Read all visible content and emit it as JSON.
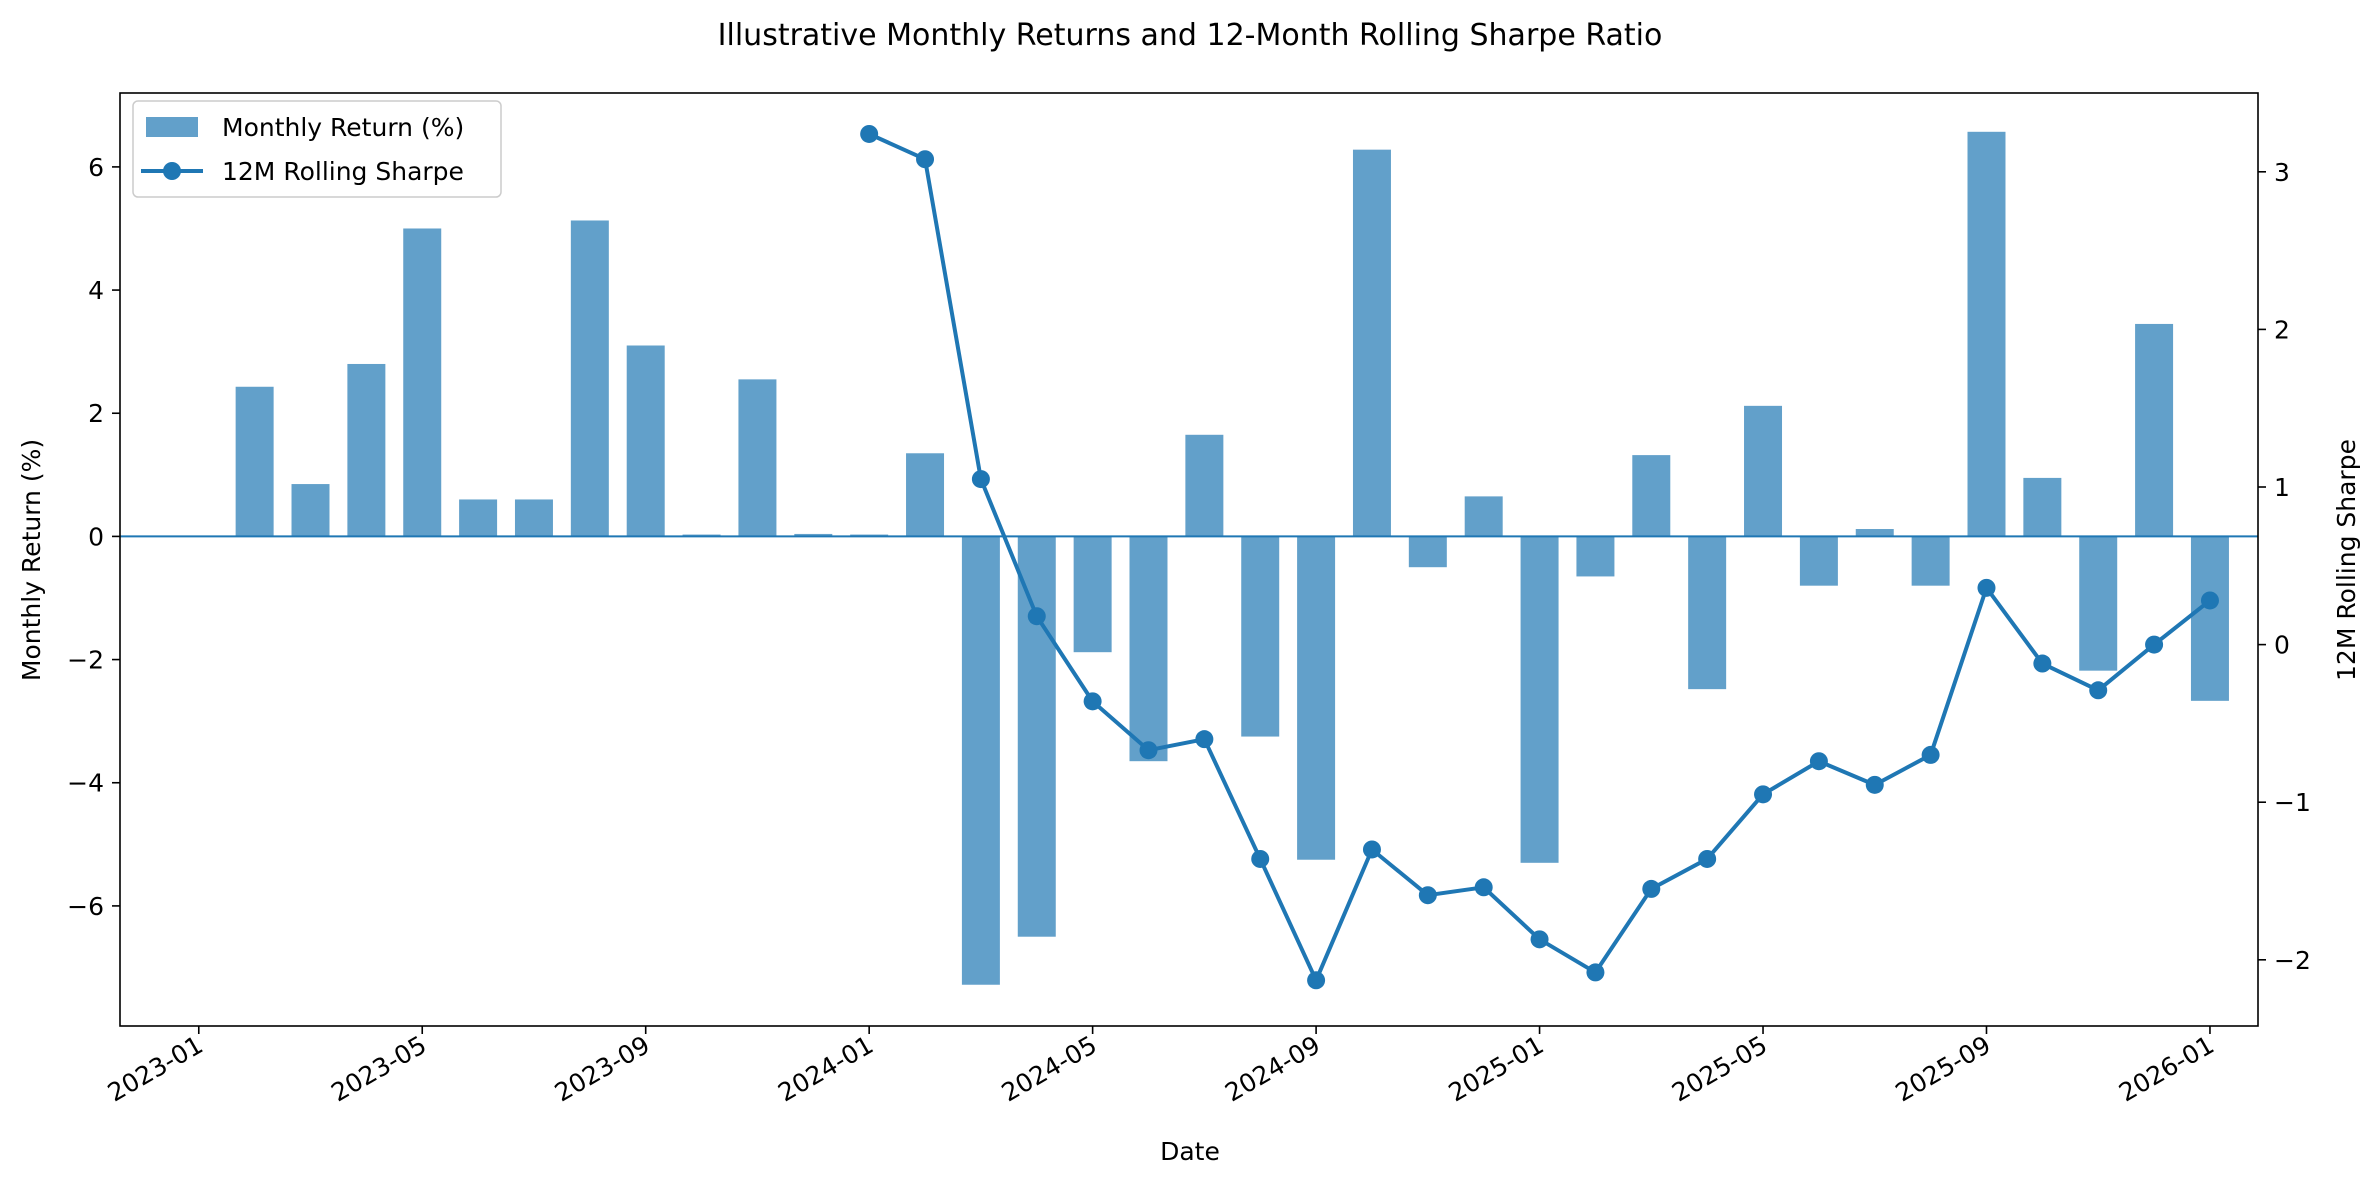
{
  "chart_data": {
    "type": "bar",
    "title": "Illustrative Monthly Returns and 12-Month Rolling Sharpe Ratio",
    "xlabel": "Date",
    "ylabel_left": "Monthly Return (%)",
    "ylabel_right": "12M Rolling Sharpe",
    "x_tick_labels": [
      "2023-01",
      "2023-05",
      "2023-09",
      "2024-01",
      "2024-05",
      "2024-09",
      "2025-01",
      "2025-05",
      "2025-09",
      "2026-01"
    ],
    "ylim_left": [
      -7.95,
      7.2
    ],
    "ylim_right": [
      -2.42,
      3.5
    ],
    "yticks_left": [
      -6,
      -4,
      -2,
      0,
      2,
      4,
      6
    ],
    "yticks_right": [
      -2,
      -1,
      0,
      1,
      2,
      3
    ],
    "legend_position": "upper left",
    "zero_line": true,
    "colors": {
      "bar": "#1f77b4",
      "bar_opacity": 0.7,
      "line": "#1f77b4"
    },
    "categories": [
      "2023-02",
      "2023-03",
      "2023-04",
      "2023-05",
      "2023-06",
      "2023-07",
      "2023-08",
      "2023-09",
      "2023-10",
      "2023-11",
      "2023-12",
      "2024-01",
      "2024-02",
      "2024-03",
      "2024-04",
      "2024-05",
      "2024-06",
      "2024-07",
      "2024-08",
      "2024-09",
      "2024-10",
      "2024-11",
      "2024-12",
      "2025-01",
      "2025-02",
      "2025-03",
      "2025-04",
      "2025-05",
      "2025-06",
      "2025-07",
      "2025-08",
      "2025-09",
      "2025-10",
      "2025-11",
      "2025-12",
      "2026-01"
    ],
    "series": [
      {
        "name": "Monthly Return (%)",
        "kind": "bar",
        "values": [
          2.43,
          0.85,
          2.8,
          5.0,
          0.6,
          0.6,
          5.13,
          3.1,
          0.03,
          2.55,
          0.04,
          0.03,
          1.35,
          -7.28,
          -6.5,
          -1.88,
          -3.65,
          1.65,
          -3.25,
          -5.25,
          6.28,
          -0.5,
          0.65,
          -5.3,
          -0.65,
          1.32,
          -2.48,
          2.12,
          -0.8,
          0.12,
          -0.8,
          6.57,
          0.95,
          -2.18,
          3.45,
          -2.67
        ]
      },
      {
        "name": "12M Rolling Sharpe",
        "kind": "line",
        "x": [
          "2024-01",
          "2024-02",
          "2024-03",
          "2024-04",
          "2024-05",
          "2024-06",
          "2024-07",
          "2024-08",
          "2024-09",
          "2024-10",
          "2024-11",
          "2024-12",
          "2025-01",
          "2025-02",
          "2025-03",
          "2025-04",
          "2025-05",
          "2025-06",
          "2025-07",
          "2025-08",
          "2025-09",
          "2025-10",
          "2025-11",
          "2025-12",
          "2026-01"
        ],
        "values": [
          3.24,
          3.08,
          1.05,
          0.18,
          -0.36,
          -0.67,
          -0.6,
          -1.36,
          -2.13,
          -1.3,
          -1.59,
          -1.54,
          -1.87,
          -2.08,
          -1.55,
          -1.36,
          -0.95,
          -0.74,
          -0.89,
          -0.7,
          0.36,
          -0.12,
          -0.29,
          0.0,
          0.28
        ]
      }
    ]
  }
}
